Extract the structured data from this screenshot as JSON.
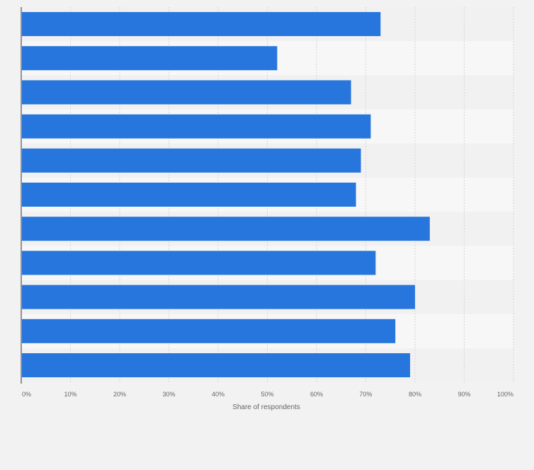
{
  "colors": {
    "background": "#f2f2f2",
    "band_light": "#f7f7f7",
    "band_dark": "#f1f1f1",
    "bar": "#2776dd",
    "axis": "#333333",
    "grid": "#d6d6d6",
    "tick_text": "#666666"
  },
  "chart_data": {
    "type": "bar",
    "orientation": "horizontal",
    "categories": [
      "",
      "",
      "",
      "",
      "",
      "",
      "",
      "",
      "",
      "",
      ""
    ],
    "values": [
      73,
      52,
      67,
      71,
      69,
      68,
      83,
      72,
      80,
      76,
      79
    ],
    "xlabel": "Share of respondents",
    "xlim": [
      0,
      100
    ],
    "x_ticks": [
      0,
      10,
      20,
      30,
      40,
      50,
      60,
      70,
      80,
      90,
      100
    ],
    "x_tick_labels": [
      "0%",
      "10%",
      "20%",
      "30%",
      "40%",
      "50%",
      "60%",
      "70%",
      "80%",
      "90%",
      "100%"
    ],
    "grid": true,
    "legend": "none"
  }
}
